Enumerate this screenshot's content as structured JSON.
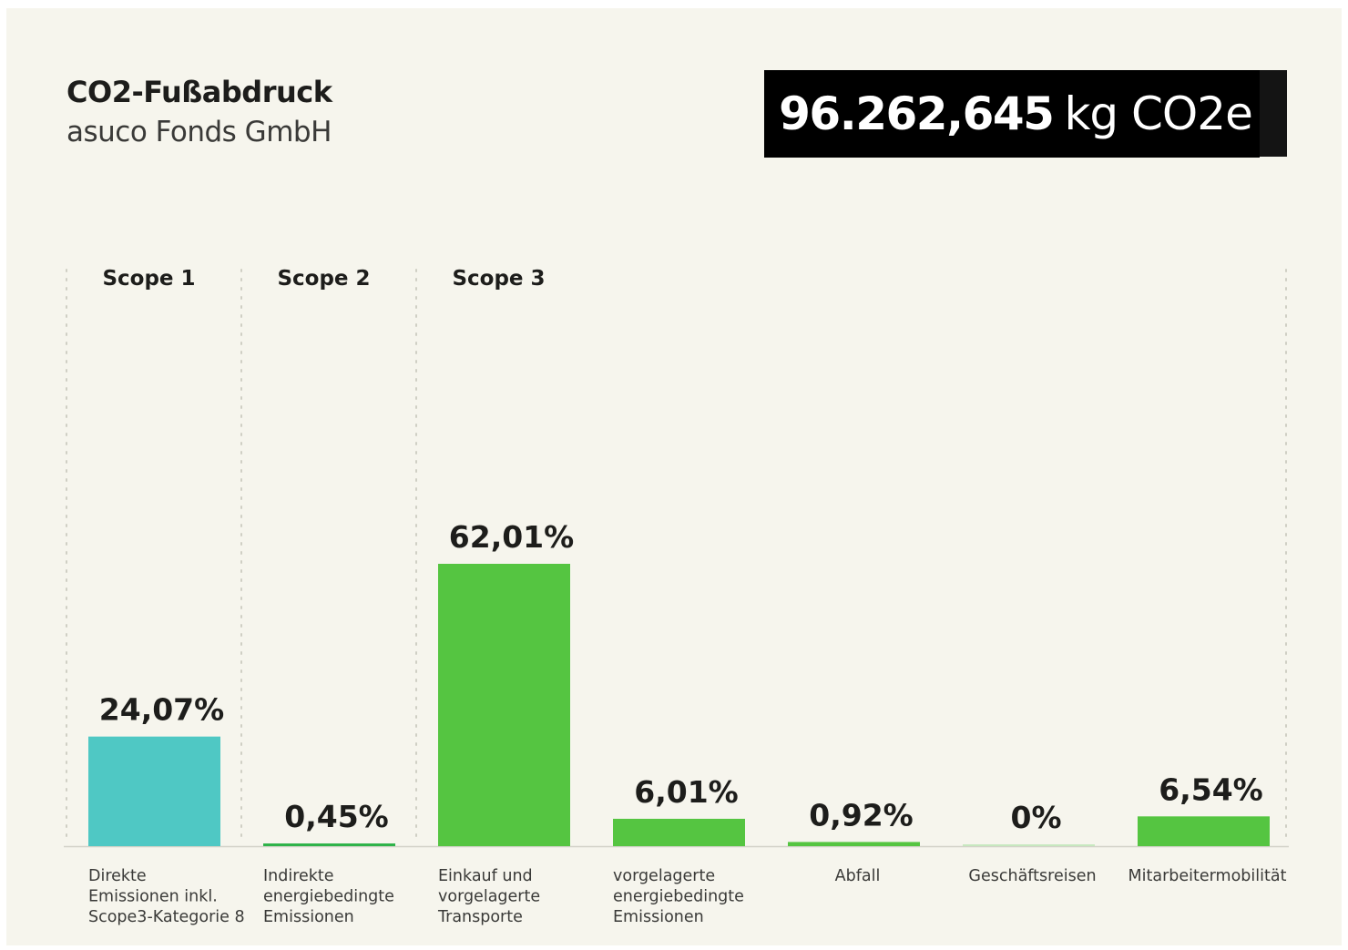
{
  "header": {
    "title": "CO2-Fußabdruck",
    "subtitle": "asuco Fonds GmbH",
    "total_value": "96.262,645",
    "total_unit": "kg CO2e"
  },
  "colors": {
    "background": "#f6f5ed",
    "scope1": "#4fc8c4",
    "scope2": "#2fb34a",
    "scope3": "#55c541",
    "zero_bar": "#c7e8bf",
    "text": "#1d1d1b"
  },
  "chart_data": {
    "type": "bar",
    "groups": [
      {
        "name": "Scope 1",
        "start": 0,
        "end": 0
      },
      {
        "name": "Scope 2",
        "start": 1,
        "end": 1
      },
      {
        "name": "Scope 3",
        "start": 2,
        "end": 6
      }
    ],
    "categories": [
      [
        "Direkte",
        "Emissionen inkl.",
        "Scope3-Kategorie 8"
      ],
      [
        "Indirekte",
        "energiebedingte",
        "Emissionen"
      ],
      [
        "Einkauf und",
        "vorgelagerte",
        "Transporte"
      ],
      [
        "vorgelagerte",
        "energiebedingte",
        "Emissionen"
      ],
      [
        "Abfall"
      ],
      [
        "Geschäftsreisen"
      ],
      [
        "Mitarbeitermobilität"
      ]
    ],
    "values": [
      24.07,
      0.45,
      62.01,
      6.01,
      0.92,
      0,
      6.54
    ],
    "value_labels": [
      "24,07%",
      "0,45%",
      "62,01%",
      "6,01%",
      "0,92%",
      "0%",
      "6,54%"
    ],
    "unit": "%",
    "ylim": [
      0,
      62.01
    ],
    "grid": false
  }
}
